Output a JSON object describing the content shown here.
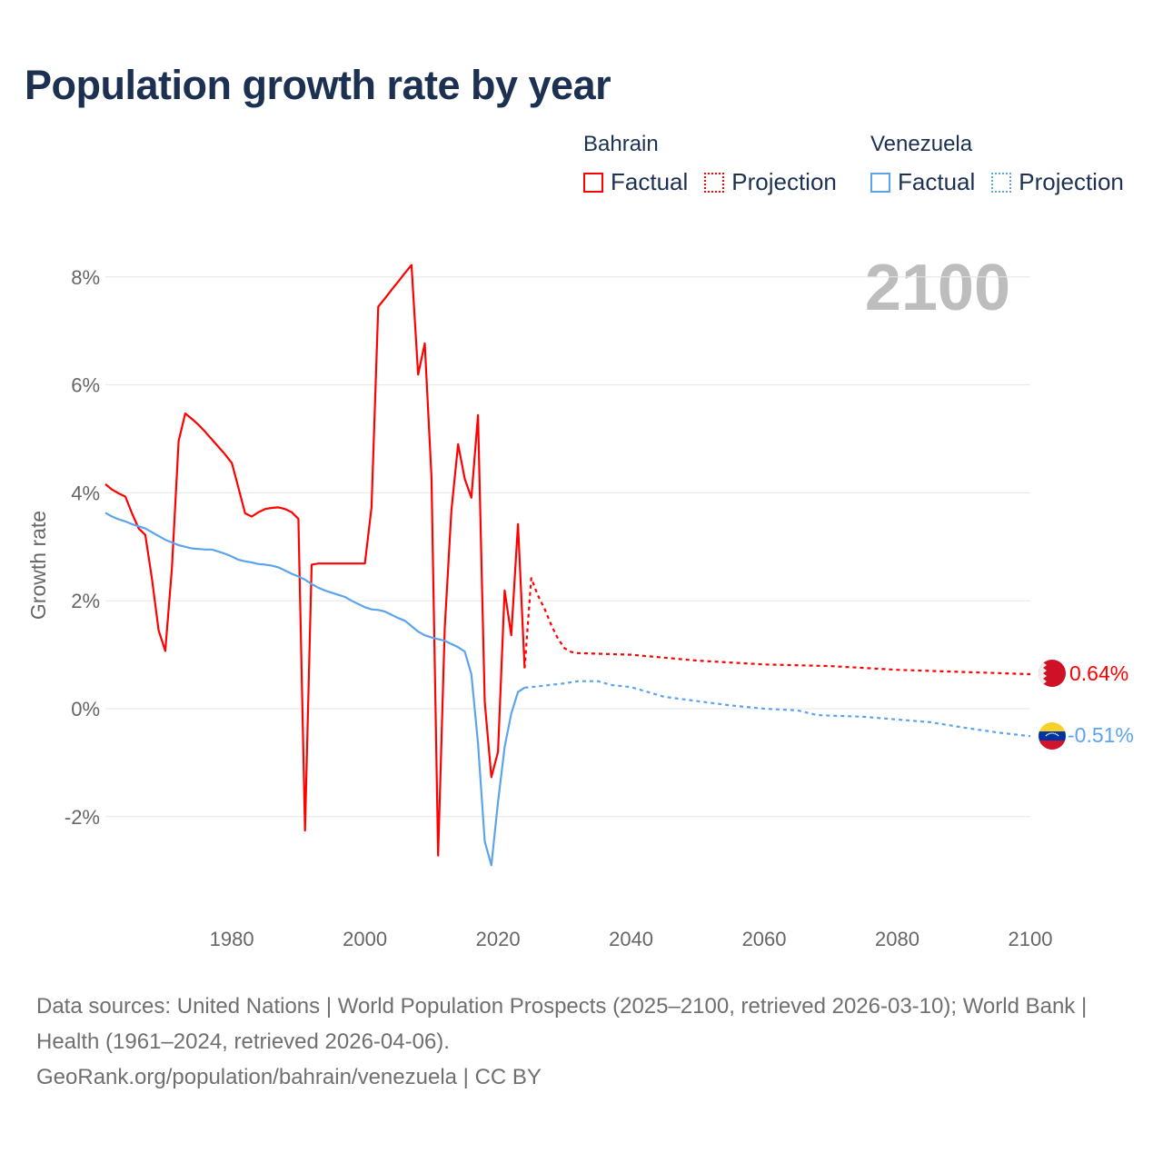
{
  "title": "Population growth rate by year",
  "legend": {
    "groups": [
      {
        "name": "Bahrain",
        "factual": "Factual",
        "projection": "Projection",
        "color": "#ff0000"
      },
      {
        "name": "Venezuela",
        "factual": "Factual",
        "projection": "Projection",
        "color": "#5ba4ec"
      }
    ]
  },
  "year_display": "2100",
  "footer": {
    "sources": "Data sources: United Nations | World Population Prospects (2025–2100, retrieved 2026-03-10); World Bank | Health (1961–2024, retrieved 2026-04-06).",
    "credit": "GeoRank.org/population/bahrain/venezuela | CC BY"
  },
  "chart_data": {
    "type": "line",
    "title": "Population growth rate by year",
    "xlabel": "",
    "ylabel": "Growth rate",
    "xlim": [
      1961,
      2100
    ],
    "ylim": [
      -3.8,
      8.8
    ],
    "x_ticks": [
      1980,
      2000,
      2020,
      2040,
      2060,
      2080,
      2100
    ],
    "y_ticks": [
      -2,
      0,
      2,
      4,
      6,
      8
    ],
    "y_tick_labels": [
      "-2%",
      "0%",
      "2%",
      "4%",
      "6%",
      "8%"
    ],
    "grid": true,
    "legend_position": "top-right",
    "series": [
      {
        "name": "Bahrain",
        "kind": "Factual",
        "color": "#ff0000",
        "end_label": "0.64%",
        "points": [
          [
            1961,
            4.16
          ],
          [
            1962,
            4.06
          ],
          [
            1963,
            3.99
          ],
          [
            1964,
            3.93
          ],
          [
            1965,
            3.62
          ],
          [
            1966,
            3.34
          ],
          [
            1967,
            3.22
          ],
          [
            1968,
            2.4
          ],
          [
            1969,
            1.45
          ],
          [
            1970,
            1.07
          ],
          [
            1971,
            2.6
          ],
          [
            1972,
            4.96
          ],
          [
            1973,
            5.47
          ],
          [
            1974,
            5.37
          ],
          [
            1975,
            5.26
          ],
          [
            1976,
            5.13
          ],
          [
            1977,
            4.99
          ],
          [
            1978,
            4.85
          ],
          [
            1979,
            4.71
          ],
          [
            1980,
            4.55
          ],
          [
            1981,
            4.09
          ],
          [
            1982,
            3.62
          ],
          [
            1983,
            3.56
          ],
          [
            1984,
            3.64
          ],
          [
            1985,
            3.7
          ],
          [
            1986,
            3.72
          ],
          [
            1987,
            3.73
          ],
          [
            1988,
            3.7
          ],
          [
            1989,
            3.64
          ],
          [
            1990,
            3.52
          ],
          [
            1991,
            -2.26
          ],
          [
            1992,
            2.67
          ],
          [
            1993,
            2.69
          ],
          [
            1994,
            2.69
          ],
          [
            1995,
            2.69
          ],
          [
            1996,
            2.69
          ],
          [
            1997,
            2.69
          ],
          [
            1998,
            2.69
          ],
          [
            1999,
            2.69
          ],
          [
            2000,
            2.69
          ],
          [
            2001,
            3.73
          ],
          [
            2002,
            7.45
          ],
          [
            2003,
            7.6
          ],
          [
            2004,
            7.76
          ],
          [
            2005,
            7.91
          ],
          [
            2006,
            8.07
          ],
          [
            2007,
            8.22
          ],
          [
            2008,
            6.19
          ],
          [
            2009,
            6.77
          ],
          [
            2010,
            4.29
          ],
          [
            2011,
            -2.72
          ],
          [
            2012,
            1.5
          ],
          [
            2013,
            3.67
          ],
          [
            2014,
            4.9
          ],
          [
            2015,
            4.26
          ],
          [
            2016,
            3.91
          ],
          [
            2017,
            5.44
          ],
          [
            2018,
            0.13
          ],
          [
            2019,
            -1.27
          ],
          [
            2020,
            -0.8
          ],
          [
            2021,
            2.19
          ],
          [
            2022,
            1.36
          ],
          [
            2023,
            3.42
          ],
          [
            2024,
            0.75
          ]
        ]
      },
      {
        "name": "Bahrain",
        "kind": "Projection",
        "color": "#ff0000",
        "points": [
          [
            2024,
            0.75
          ],
          [
            2025,
            2.42
          ],
          [
            2026,
            2.1
          ],
          [
            2027,
            1.85
          ],
          [
            2028,
            1.55
          ],
          [
            2029,
            1.3
          ],
          [
            2030,
            1.12
          ],
          [
            2031,
            1.05
          ],
          [
            2032,
            1.03
          ],
          [
            2040,
            1.0
          ],
          [
            2050,
            0.89
          ],
          [
            2060,
            0.82
          ],
          [
            2070,
            0.79
          ],
          [
            2080,
            0.72
          ],
          [
            2090,
            0.68
          ],
          [
            2100,
            0.64
          ]
        ]
      },
      {
        "name": "Venezuela",
        "kind": "Factual",
        "color": "#5ba4ec",
        "end_label": "-0.51%",
        "points": [
          [
            1961,
            3.63
          ],
          [
            1962,
            3.56
          ],
          [
            1963,
            3.51
          ],
          [
            1964,
            3.47
          ],
          [
            1965,
            3.42
          ],
          [
            1966,
            3.38
          ],
          [
            1967,
            3.34
          ],
          [
            1968,
            3.27
          ],
          [
            1969,
            3.2
          ],
          [
            1970,
            3.13
          ],
          [
            1971,
            3.08
          ],
          [
            1972,
            3.03
          ],
          [
            1973,
            3.0
          ],
          [
            1974,
            2.97
          ],
          [
            1975,
            2.96
          ],
          [
            1976,
            2.95
          ],
          [
            1977,
            2.95
          ],
          [
            1978,
            2.91
          ],
          [
            1979,
            2.87
          ],
          [
            1980,
            2.82
          ],
          [
            1981,
            2.76
          ],
          [
            1982,
            2.73
          ],
          [
            1983,
            2.71
          ],
          [
            1984,
            2.68
          ],
          [
            1985,
            2.67
          ],
          [
            1986,
            2.65
          ],
          [
            1987,
            2.62
          ],
          [
            1988,
            2.56
          ],
          [
            1989,
            2.5
          ],
          [
            1990,
            2.45
          ],
          [
            1991,
            2.39
          ],
          [
            1992,
            2.31
          ],
          [
            1993,
            2.24
          ],
          [
            1994,
            2.19
          ],
          [
            1995,
            2.15
          ],
          [
            1996,
            2.11
          ],
          [
            1997,
            2.07
          ],
          [
            1998,
            2.0
          ],
          [
            1999,
            1.94
          ],
          [
            2000,
            1.88
          ],
          [
            2001,
            1.84
          ],
          [
            2002,
            1.83
          ],
          [
            2003,
            1.8
          ],
          [
            2004,
            1.74
          ],
          [
            2005,
            1.68
          ],
          [
            2006,
            1.63
          ],
          [
            2007,
            1.53
          ],
          [
            2008,
            1.43
          ],
          [
            2009,
            1.36
          ],
          [
            2010,
            1.32
          ],
          [
            2011,
            1.29
          ],
          [
            2012,
            1.26
          ],
          [
            2013,
            1.2
          ],
          [
            2014,
            1.14
          ],
          [
            2015,
            1.06
          ],
          [
            2016,
            0.64
          ],
          [
            2017,
            -0.64
          ],
          [
            2018,
            -2.46
          ],
          [
            2019,
            -2.9
          ],
          [
            2020,
            -1.73
          ],
          [
            2021,
            -0.71
          ],
          [
            2022,
            -0.09
          ],
          [
            2023,
            0.31
          ],
          [
            2024,
            0.39
          ]
        ]
      },
      {
        "name": "Venezuela",
        "kind": "Projection",
        "color": "#5ba4ec",
        "points": [
          [
            2024,
            0.39
          ],
          [
            2025,
            0.4
          ],
          [
            2030,
            0.47
          ],
          [
            2032,
            0.51
          ],
          [
            2035,
            0.51
          ],
          [
            2037,
            0.44
          ],
          [
            2040,
            0.4
          ],
          [
            2045,
            0.22
          ],
          [
            2050,
            0.14
          ],
          [
            2055,
            0.06
          ],
          [
            2060,
            0.0
          ],
          [
            2065,
            -0.03
          ],
          [
            2068,
            -0.12
          ],
          [
            2075,
            -0.15
          ],
          [
            2080,
            -0.2
          ],
          [
            2085,
            -0.25
          ],
          [
            2090,
            -0.35
          ],
          [
            2095,
            -0.44
          ],
          [
            2100,
            -0.51
          ]
        ]
      }
    ]
  }
}
